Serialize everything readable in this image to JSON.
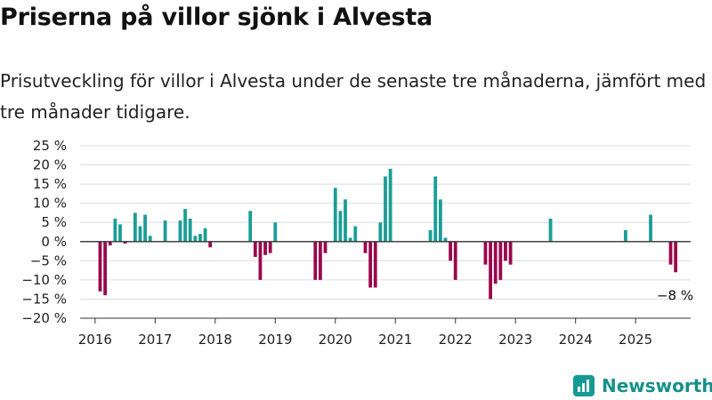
{
  "title": "Priserna på villor sjönk i Alvesta",
  "subtitle": "Prisutveckling för villor i Alvesta under de senaste tre månaderna, jämfört med tre månader tidigare.",
  "brand": {
    "name": "Newsworthy",
    "icon": "newsworthy-logo-icon"
  },
  "colors": {
    "positive": "#1a9e96",
    "negative": "#99084d",
    "grid": "#dddddd",
    "zero": "#333333"
  },
  "chart_data": {
    "type": "bar",
    "title": "",
    "xlabel": "",
    "ylabel": "",
    "unit": "%",
    "ylim": [
      -20,
      25
    ],
    "yticks": [
      25,
      20,
      15,
      10,
      5,
      0,
      -5,
      -10,
      -15,
      -20
    ],
    "ytick_labels": [
      "25 %",
      "20 %",
      "15 %",
      "10 %",
      "5 %",
      "0 %",
      "−5 %",
      "−10 %",
      "−15 %",
      "−20 %"
    ],
    "xlim": [
      "2015-10",
      "2025-12"
    ],
    "xticks": [
      "2016-01",
      "2017-01",
      "2018-01",
      "2019-01",
      "2020-01",
      "2021-01",
      "2022-01",
      "2023-01",
      "2024-01",
      "2025-01"
    ],
    "xtick_labels": [
      "2016",
      "2017",
      "2018",
      "2019",
      "2020",
      "2021",
      "2022",
      "2023",
      "2024",
      "2025"
    ],
    "grid": true,
    "legend": "none",
    "series": [
      {
        "dates": [
          "2016-01",
          "2016-02",
          "2016-03",
          "2016-04",
          "2016-05",
          "2016-06",
          "2016-07",
          "2016-08",
          "2016-09",
          "2016-10",
          "2016-11",
          "2016-12",
          "2017-01",
          "2017-02",
          "2017-03",
          "2017-04",
          "2017-05",
          "2017-06",
          "2017-07",
          "2017-08",
          "2017-09",
          "2017-10",
          "2017-11",
          "2017-12",
          "2018-01",
          "2018-02",
          "2018-03",
          "2018-04",
          "2018-05",
          "2018-06",
          "2018-07",
          "2018-08",
          "2018-09",
          "2018-10",
          "2018-11",
          "2018-12",
          "2019-01",
          "2019-02",
          "2019-03",
          "2019-04",
          "2019-05",
          "2019-06",
          "2019-07",
          "2019-08",
          "2019-09",
          "2019-10",
          "2019-11",
          "2019-12",
          "2020-01",
          "2020-02",
          "2020-03",
          "2020-04",
          "2020-05",
          "2020-06",
          "2020-07",
          "2020-08",
          "2020-09",
          "2020-10",
          "2020-11",
          "2020-12",
          "2021-01",
          "2021-02",
          "2021-03",
          "2021-04",
          "2021-05",
          "2021-06",
          "2021-07",
          "2021-08",
          "2021-09",
          "2021-10",
          "2021-11",
          "2021-12",
          "2022-01",
          "2022-02",
          "2022-03",
          "2022-04",
          "2022-05",
          "2022-06",
          "2022-07",
          "2022-08",
          "2022-09",
          "2022-10",
          "2022-11",
          "2022-12",
          "2023-01",
          "2023-02",
          "2023-03",
          "2023-04",
          "2023-05",
          "2023-06",
          "2023-07",
          "2023-08",
          "2023-09",
          "2023-10",
          "2023-11",
          "2023-12",
          "2024-01",
          "2024-02",
          "2024-03",
          "2024-04",
          "2024-05",
          "2024-06",
          "2024-07",
          "2024-08",
          "2024-09",
          "2024-10",
          "2024-11",
          "2024-12",
          "2025-01",
          "2025-02",
          "2025-03",
          "2025-04",
          "2025-05",
          "2025-06",
          "2025-07",
          "2025-08",
          "2025-09"
        ],
        "values": [
          0,
          -13,
          -14,
          -1,
          6,
          4.5,
          -0.5,
          0,
          7.5,
          4,
          7,
          1.5,
          0,
          0,
          5.5,
          0,
          0,
          5.5,
          8.5,
          6,
          1.5,
          2,
          3.5,
          -1.5,
          0,
          0,
          0,
          0,
          0,
          0,
          0,
          8,
          -4,
          -10,
          -3.5,
          -3,
          5,
          0,
          0,
          0,
          0,
          0,
          0,
          0,
          -10,
          -10,
          -3,
          0,
          14,
          8,
          11,
          1,
          4,
          0,
          -3,
          -12,
          -12,
          5,
          17,
          19,
          0,
          0,
          0,
          0,
          0,
          0,
          0,
          3,
          17,
          11,
          1,
          -5,
          -10,
          0,
          0,
          0,
          0,
          0,
          -6,
          -15,
          -11,
          -10,
          -5,
          -6,
          0,
          0,
          0,
          0,
          0,
          0,
          0,
          6,
          0,
          0,
          0,
          0,
          0,
          0,
          0,
          0,
          0,
          0,
          0,
          0,
          0,
          0,
          3,
          0,
          0,
          0,
          0,
          7,
          0,
          0,
          0,
          -6,
          -8
        ]
      }
    ],
    "annotation": {
      "date": "2025-09",
      "value": -8,
      "label": "−8 %"
    }
  }
}
